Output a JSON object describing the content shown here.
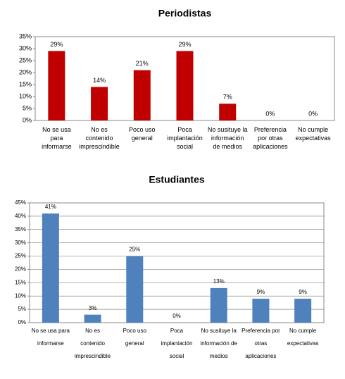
{
  "chart_data": [
    {
      "type": "bar",
      "title": "Periodistas",
      "categories": [
        "No se usa para informarse",
        "No es contenido imprescindible",
        "Poco uso general",
        "Poca implantación social",
        "No susituye la información de medios",
        "Preferencia por otras aplicaciones",
        "No cumple expectativas"
      ],
      "values": [
        29,
        14,
        21,
        29,
        7,
        0,
        0
      ],
      "value_labels": [
        "29%",
        "14%",
        "21%",
        "29%",
        "7%",
        "0%",
        "0%"
      ],
      "color": "#c00000",
      "ylim": [
        0,
        35
      ],
      "yticks": [
        {
          "value": 0,
          "label": "0%"
        },
        {
          "value": 5,
          "label": "5%"
        },
        {
          "value": 10,
          "label": "10%"
        },
        {
          "value": 15,
          "label": "15%"
        },
        {
          "value": 20,
          "label": "20%"
        },
        {
          "value": 25,
          "label": "25%"
        },
        {
          "value": 30,
          "label": "30%"
        },
        {
          "value": 35,
          "label": "35%"
        }
      ],
      "grid": false
    },
    {
      "type": "bar",
      "title": "Estudiantes",
      "categories": [
        "No se usa para informarse",
        "No es contenido imprescindible",
        "Poco uso general",
        "Poca implantación social",
        "No susituye la información de medios",
        "Preferencia por otras aplicaciones",
        "No cumple expectativas"
      ],
      "values": [
        41,
        3,
        25,
        0,
        13,
        9,
        9
      ],
      "value_labels": [
        "41%",
        "3%",
        "25%",
        "0%",
        "13%",
        "9%",
        "9%"
      ],
      "color": "#4f81bd",
      "ylim": [
        0,
        45
      ],
      "yticks": [
        {
          "value": 0,
          "label": "0%"
        },
        {
          "value": 5,
          "label": "5%"
        },
        {
          "value": 10,
          "label": "10%"
        },
        {
          "value": 15,
          "label": "15%"
        },
        {
          "value": 20,
          "label": "20%"
        },
        {
          "value": 25,
          "label": "25%"
        },
        {
          "value": 30,
          "label": "30%"
        },
        {
          "value": 35,
          "label": "35%"
        },
        {
          "value": 40,
          "label": "40%"
        },
        {
          "value": 45,
          "label": "45%"
        }
      ],
      "grid": true
    }
  ]
}
